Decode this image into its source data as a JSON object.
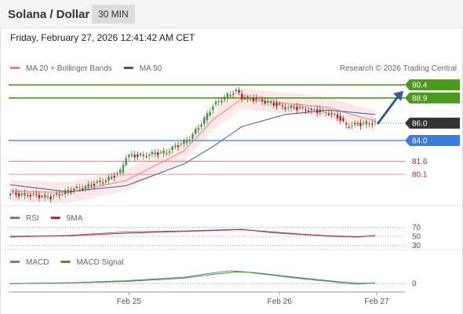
{
  "header": {
    "title": "Solana / Dollar",
    "interval": "30 MIN"
  },
  "timestamp": "Friday, February 27, 2026 12:41:42 AM CET",
  "colors": {
    "up": "#3a9a3a",
    "down": "#c01818",
    "ma20": "#f08080",
    "bollinger_fill": "#fde0e0",
    "ma50": "#2f5f9a",
    "resistance": "#4c9a1c",
    "support": "#3d7be0",
    "pivot_dark": "#333333",
    "minor_level": "#e57373",
    "rsi": "#5a7fd6",
    "rsi_ma": "#d42020",
    "macd": "#5a7fd6",
    "macd_signal": "#3f9a1c",
    "arrow": "#2f5f9a"
  },
  "chart_data": [
    {
      "type": "candlestick",
      "title": "",
      "legend": [
        {
          "label": "MA 20 + Bollinger Bands",
          "color": "#f08080"
        },
        {
          "label": "MA 50",
          "color": "#2f5f9a"
        }
      ],
      "source": "Research © 2026 Trading Central",
      "x_ticks": [
        "Feb 25",
        "Feb 26",
        "Feb 27"
      ],
      "ylim": [
        76.5,
        91.5
      ],
      "levels": [
        {
          "value": 90.4,
          "label": "90.4",
          "kind": "resistance"
        },
        {
          "value": 88.9,
          "label": "88.9",
          "kind": "resistance"
        },
        {
          "value": 86.0,
          "label": "86.0",
          "kind": "pivot"
        },
        {
          "value": 84.0,
          "label": "84.0",
          "kind": "support"
        },
        {
          "value": 81.6,
          "label": "81.6",
          "kind": "minor"
        },
        {
          "value": 80.1,
          "label": "80.1",
          "kind": "minor"
        }
      ],
      "anchors": [
        [
          0,
          77.9
        ],
        [
          8,
          77.7
        ],
        [
          14,
          77.5
        ],
        [
          20,
          78.2
        ],
        [
          28,
          78.9
        ],
        [
          34,
          79.6
        ],
        [
          38,
          80.4
        ],
        [
          40,
          82.2
        ],
        [
          46,
          82.3
        ],
        [
          54,
          82.7
        ],
        [
          58,
          83.5
        ],
        [
          62,
          84.2
        ],
        [
          66,
          86.0
        ],
        [
          70,
          88.0
        ],
        [
          74,
          89.0
        ],
        [
          78,
          89.7
        ],
        [
          80,
          89.0
        ],
        [
          86,
          88.7
        ],
        [
          90,
          88.3
        ],
        [
          94,
          87.9
        ],
        [
          100,
          87.7
        ],
        [
          106,
          87.4
        ],
        [
          110,
          87.2
        ],
        [
          114,
          86.5
        ],
        [
          116,
          85.7
        ],
        [
          120,
          85.9
        ],
        [
          126,
          86.1
        ]
      ],
      "ma20_anchors": [
        [
          0,
          78.2
        ],
        [
          20,
          78.0
        ],
        [
          40,
          79.4
        ],
        [
          60,
          82.8
        ],
        [
          70,
          86.4
        ],
        [
          80,
          88.8
        ],
        [
          95,
          88.3
        ],
        [
          110,
          87.8
        ],
        [
          120,
          86.8
        ],
        [
          126,
          86.3
        ]
      ],
      "ma50_anchors": [
        [
          0,
          78.9
        ],
        [
          20,
          78.1
        ],
        [
          40,
          78.8
        ],
        [
          60,
          81.3
        ],
        [
          70,
          83.3
        ],
        [
          80,
          85.6
        ],
        [
          95,
          87.0
        ],
        [
          110,
          87.5
        ],
        [
          126,
          87.0
        ]
      ],
      "bollinger_width": 1.2,
      "projection": {
        "from": 85.9,
        "to": 89.7
      }
    },
    {
      "type": "line",
      "title": "",
      "legend": [
        {
          "label": "RSI",
          "color": "#5a7fd6"
        },
        {
          "label": "9MA",
          "color": "#d42020"
        }
      ],
      "y_ticks": [
        "70",
        "50",
        "30"
      ],
      "ylim": [
        20,
        80
      ],
      "series": [
        {
          "name": "RSI",
          "anchors": [
            [
              0,
              48
            ],
            [
              20,
              52
            ],
            [
              40,
              60
            ],
            [
              60,
              62
            ],
            [
              70,
              64
            ],
            [
              80,
              66
            ],
            [
              90,
              58
            ],
            [
              100,
              54
            ],
            [
              110,
              50
            ],
            [
              120,
              48
            ],
            [
              126,
              52
            ]
          ]
        },
        {
          "name": "9MA",
          "anchors": [
            [
              0,
              50
            ],
            [
              20,
              51
            ],
            [
              40,
              57
            ],
            [
              60,
              61
            ],
            [
              70,
              63
            ],
            [
              80,
              65
            ],
            [
              90,
              60
            ],
            [
              100,
              55
            ],
            [
              110,
              51
            ],
            [
              120,
              49
            ],
            [
              126,
              51
            ]
          ]
        }
      ]
    },
    {
      "type": "line",
      "title": "",
      "legend": [
        {
          "label": "MACD",
          "color": "#5a7fd6"
        },
        {
          "label": "MACD Signal",
          "color": "#3f9a1c"
        }
      ],
      "y_ticks": [
        "0"
      ],
      "ylim": [
        -0.6,
        1.4
      ],
      "series": [
        {
          "name": "MACD",
          "anchors": [
            [
              0,
              0.0
            ],
            [
              20,
              0.05
            ],
            [
              40,
              0.2
            ],
            [
              60,
              0.45
            ],
            [
              70,
              0.75
            ],
            [
              76,
              0.9
            ],
            [
              80,
              0.85
            ],
            [
              90,
              0.6
            ],
            [
              100,
              0.35
            ],
            [
              110,
              0.15
            ],
            [
              116,
              0.0
            ],
            [
              120,
              -0.05
            ],
            [
              126,
              0.05
            ]
          ]
        },
        {
          "name": "MACD Signal",
          "anchors": [
            [
              0,
              0.0
            ],
            [
              20,
              0.04
            ],
            [
              40,
              0.15
            ],
            [
              60,
              0.38
            ],
            [
              70,
              0.65
            ],
            [
              78,
              0.82
            ],
            [
              84,
              0.78
            ],
            [
              94,
              0.55
            ],
            [
              104,
              0.32
            ],
            [
              114,
              0.12
            ],
            [
              120,
              0.02
            ],
            [
              126,
              0.02
            ]
          ]
        }
      ]
    }
  ]
}
